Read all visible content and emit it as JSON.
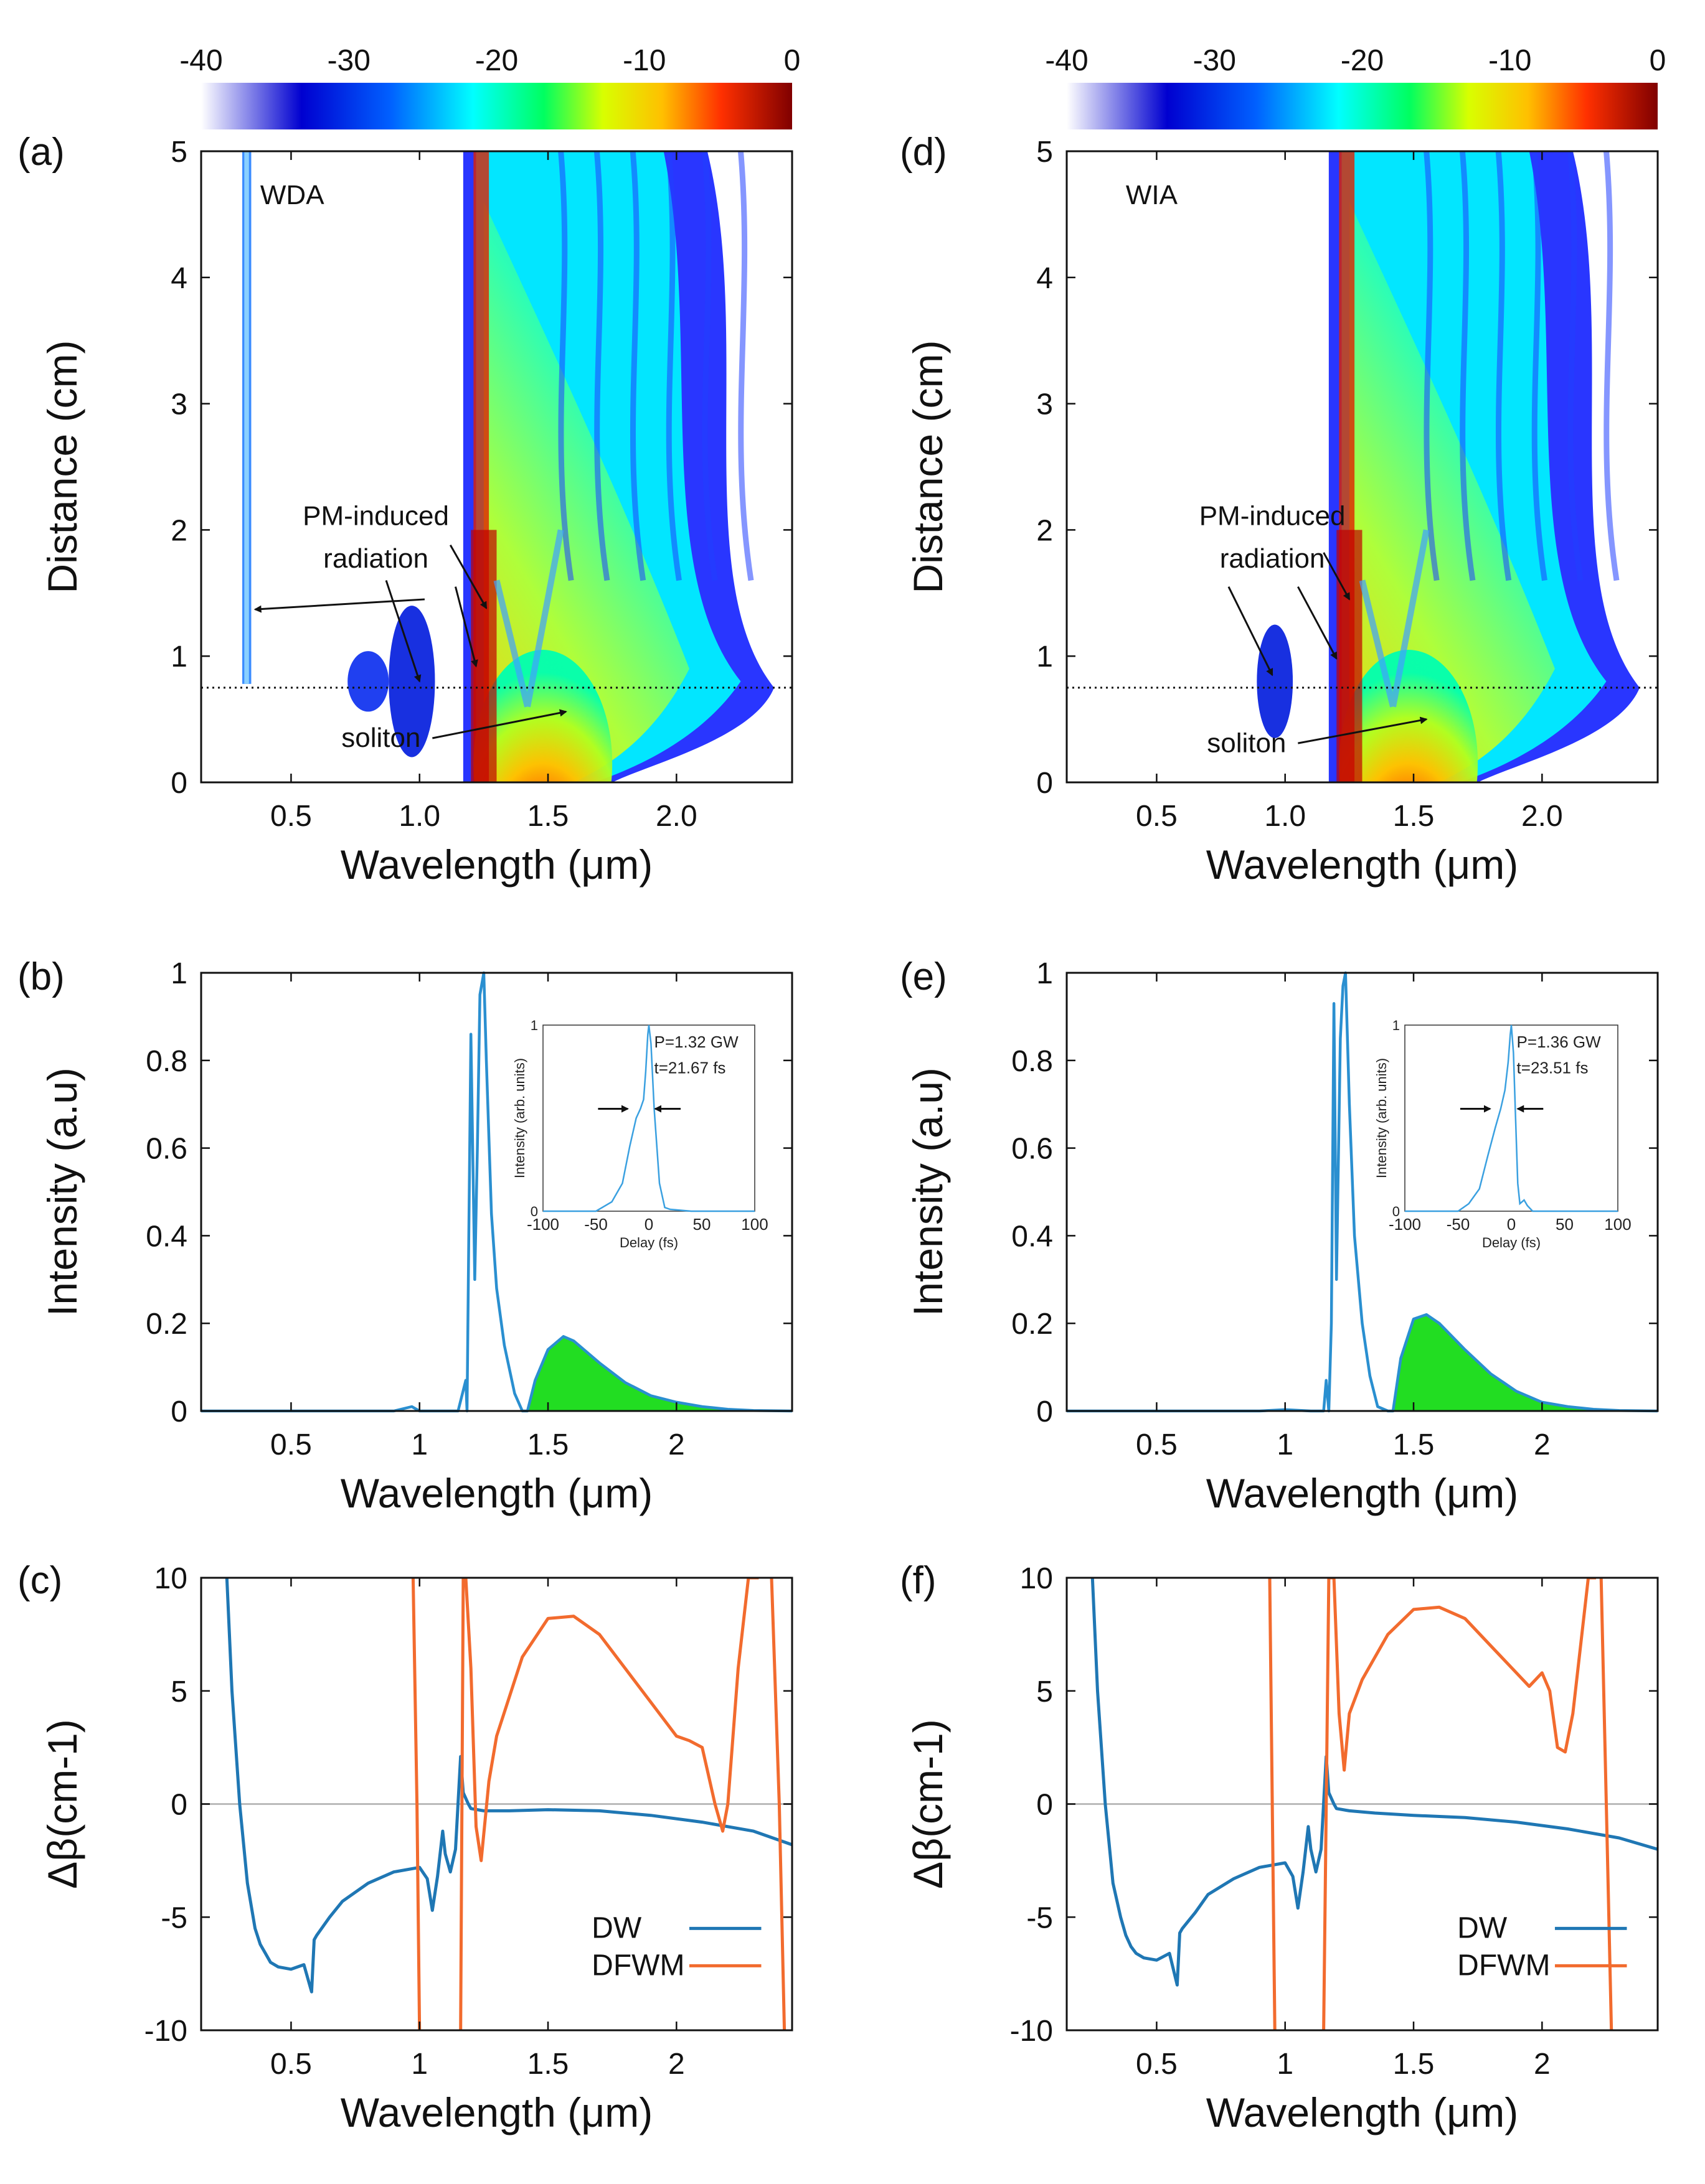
{
  "colorbar": {
    "ticks": [
      "-40",
      "-30",
      "-20",
      "-10",
      "0"
    ],
    "values": [
      -40,
      -30,
      -20,
      -10,
      0
    ],
    "colors": [
      "#ffffff",
      "#0000c8",
      "#0050ff",
      "#00ffff",
      "#00ff60",
      "#d8ff00",
      "#ffc000",
      "#ff4000",
      "#d00000",
      "#800000"
    ]
  },
  "chart_data": [
    {
      "panel": "(a)",
      "type": "heatmap",
      "title": "WDA",
      "xlabel": "Wavelength (μm)",
      "ylabel": "Distance (cm)",
      "xlim": [
        0.15,
        2.45
      ],
      "ylim": [
        0,
        5
      ],
      "xticks": [
        "0.5",
        "1.0",
        "1.5",
        "2.0"
      ],
      "yticks": [
        "0",
        "1",
        "2",
        "3",
        "4",
        "5"
      ],
      "dotted_line_y": 0.75,
      "annotations": {
        "pm": "PM-induced",
        "radiation": "radiation",
        "soliton": "soliton"
      }
    },
    {
      "panel": "(d)",
      "type": "heatmap",
      "title": "WIA",
      "xlabel": "Wavelength (μm)",
      "ylabel": "Distance (cm)",
      "xlim": [
        0.15,
        2.45
      ],
      "ylim": [
        0,
        5
      ],
      "xticks": [
        "0.5",
        "1.0",
        "1.5",
        "2.0"
      ],
      "yticks": [
        "0",
        "1",
        "2",
        "3",
        "4",
        "5"
      ],
      "dotted_line_y": 0.75,
      "annotations": {
        "pm": "PM-induced",
        "radiation": "radiation",
        "soliton": "soliton"
      }
    },
    {
      "panel": "(b)",
      "type": "line",
      "xlabel": "Wavelength (μm)",
      "ylabel": "Intensity (a.u)",
      "xlim": [
        0.15,
        2.45
      ],
      "ylim": [
        0,
        1
      ],
      "xticks": [
        "0.5",
        "1",
        "1.5",
        "2"
      ],
      "yticks": [
        "0",
        "0.2",
        "0.4",
        "0.6",
        "0.8",
        "1"
      ],
      "x": [
        0.15,
        0.9,
        0.97,
        1.0,
        1.05,
        1.15,
        1.18,
        1.185,
        1.19,
        1.2,
        1.215,
        1.225,
        1.235,
        1.25,
        1.26,
        1.28,
        1.3,
        1.33,
        1.37,
        1.4,
        1.42,
        1.45,
        1.5,
        1.56,
        1.6,
        1.7,
        1.8,
        1.9,
        2.0,
        2.1,
        2.2,
        2.3,
        2.45
      ],
      "values": [
        0.0,
        0.0,
        0.01,
        0.0,
        0.0,
        0.0,
        0.07,
        0.0,
        0.3,
        0.86,
        0.3,
        0.6,
        0.95,
        1.0,
        0.8,
        0.45,
        0.28,
        0.15,
        0.04,
        0.0,
        0.0,
        0.07,
        0.14,
        0.17,
        0.16,
        0.11,
        0.065,
        0.035,
        0.02,
        0.01,
        0.004,
        0.001,
        0.0
      ],
      "fill_from": 1.42,
      "inset": {
        "xlabel": "Delay (fs)",
        "ylabel": "Intensity (arb. units)",
        "xticks": [
          "-100",
          "-50",
          "0",
          "50",
          "100"
        ],
        "yticks": [
          "0",
          "1"
        ],
        "power": "P=1.32 GW",
        "width": "t=21.67 fs",
        "x": [
          -100,
          -50,
          -35,
          -25,
          -18,
          -12,
          -8,
          -5,
          -3,
          -1,
          0,
          2,
          5,
          10,
          15,
          20,
          30,
          40,
          60,
          100
        ],
        "values": [
          0.0,
          0.0,
          0.05,
          0.15,
          0.35,
          0.5,
          0.55,
          0.6,
          0.75,
          0.95,
          1.0,
          0.9,
          0.55,
          0.15,
          0.02,
          0.01,
          0.005,
          0.0,
          0.0,
          0.0
        ]
      }
    },
    {
      "panel": "(e)",
      "type": "line",
      "xlabel": "Wavelength (μm)",
      "ylabel": "Intensity (a.u)",
      "xlim": [
        0.15,
        2.45
      ],
      "ylim": [
        0,
        1
      ],
      "xticks": [
        "0.5",
        "1",
        "1.5",
        "2"
      ],
      "yticks": [
        "0",
        "0.2",
        "0.4",
        "0.6",
        "0.8",
        "1"
      ],
      "x": [
        0.15,
        0.9,
        1.0,
        1.1,
        1.15,
        1.16,
        1.17,
        1.18,
        1.19,
        1.2,
        1.215,
        1.225,
        1.235,
        1.25,
        1.27,
        1.3,
        1.33,
        1.36,
        1.4,
        1.42,
        1.45,
        1.5,
        1.55,
        1.6,
        1.7,
        1.8,
        1.9,
        2.0,
        2.1,
        2.2,
        2.3,
        2.45
      ],
      "values": [
        0.0,
        0.0,
        0.003,
        0.0,
        0.0,
        0.07,
        0.0,
        0.2,
        0.93,
        0.3,
        0.85,
        0.97,
        1.0,
        0.7,
        0.4,
        0.2,
        0.08,
        0.01,
        0.0,
        0.0,
        0.12,
        0.21,
        0.22,
        0.2,
        0.14,
        0.085,
        0.045,
        0.02,
        0.01,
        0.004,
        0.001,
        0.0
      ],
      "fill_from": 1.42,
      "inset": {
        "xlabel": "Delay (fs)",
        "ylabel": "Intensity (arb. units)",
        "xticks": [
          "-100",
          "-50",
          "0",
          "50",
          "100"
        ],
        "yticks": [
          "0",
          "1"
        ],
        "power": "P=1.36 GW",
        "width": "t=23.51 fs",
        "x": [
          -100,
          -50,
          -40,
          -30,
          -22,
          -15,
          -10,
          -6,
          -3,
          -1,
          0,
          2,
          4,
          6,
          8,
          12,
          15,
          20,
          30,
          100
        ],
        "values": [
          0.0,
          0.0,
          0.04,
          0.12,
          0.3,
          0.45,
          0.55,
          0.65,
          0.8,
          0.95,
          1.0,
          0.85,
          0.5,
          0.15,
          0.04,
          0.06,
          0.03,
          0.0,
          0.0,
          0.0
        ]
      }
    },
    {
      "panel": "(c)",
      "type": "line",
      "xlabel": "Wavelength (μm)",
      "ylabel": "Δβ(cm-1)",
      "xlim": [
        0.15,
        2.45
      ],
      "ylim": [
        -10,
        10
      ],
      "xticks": [
        "0.5",
        "1",
        "1.5",
        "2"
      ],
      "yticks": [
        "-10",
        "-5",
        "0",
        "5",
        "10"
      ],
      "series": [
        {
          "name": "DW",
          "color": "#1f77b4",
          "x": [
            0.25,
            0.27,
            0.3,
            0.33,
            0.36,
            0.38,
            0.4,
            0.42,
            0.45,
            0.5,
            0.55,
            0.58,
            0.59,
            0.6,
            0.65,
            0.7,
            0.8,
            0.9,
            1.0,
            1.03,
            1.05,
            1.07,
            1.09,
            1.1,
            1.12,
            1.14,
            1.16,
            1.17,
            1.19,
            1.2,
            1.25,
            1.35,
            1.5,
            1.7,
            1.9,
            2.1,
            2.3,
            2.45
          ],
          "values": [
            10.0,
            5.0,
            0.0,
            -3.5,
            -5.5,
            -6.2,
            -6.6,
            -7.0,
            -7.2,
            -7.3,
            -7.1,
            -8.3,
            -6.0,
            -5.8,
            -5.0,
            -4.3,
            -3.5,
            -3.0,
            -2.8,
            -3.3,
            -4.7,
            -3.2,
            -1.2,
            -2.2,
            -3.0,
            -2.0,
            2.1,
            0.5,
            0.0,
            -0.2,
            -0.3,
            -0.3,
            -0.25,
            -0.3,
            -0.5,
            -0.8,
            -1.2,
            -1.8
          ]
        },
        {
          "name": "DFWM",
          "color": "#f26b2e",
          "segments": [
            {
              "x": [
                0.975,
                0.99,
                1.0
              ],
              "values": [
                10.0,
                0.0,
                -10.0
              ]
            },
            {
              "x": [
                1.16,
                1.17,
                1.18,
                1.2,
                1.22,
                1.24,
                1.27,
                1.3,
                1.4,
                1.5,
                1.6,
                1.7,
                1.8,
                1.9,
                2.0,
                2.05,
                2.1,
                2.15,
                2.18,
                2.2,
                2.24,
                2.28,
                2.32
              ],
              "values": [
                -10.0,
                10.0,
                10.0,
                6.0,
                -1.0,
                -2.5,
                1.0,
                3.0,
                6.5,
                8.2,
                8.3,
                7.5,
                6.0,
                4.5,
                3.0,
                2.8,
                2.5,
                0.0,
                -1.2,
                0.0,
                6.0,
                10.0,
                10.0
              ]
            },
            {
              "x": [
                2.37,
                2.4,
                2.42
              ],
              "values": [
                10.0,
                0.0,
                -10.0
              ]
            }
          ]
        }
      ],
      "legend": [
        "DW",
        "DFWM"
      ]
    },
    {
      "panel": "(f)",
      "type": "line",
      "xlabel": "Wavelength (μm)",
      "ylabel": "Δβ(cm-1)",
      "xlim": [
        0.15,
        2.45
      ],
      "ylim": [
        -10,
        10
      ],
      "xticks": [
        "0.5",
        "1",
        "1.5",
        "2"
      ],
      "yticks": [
        "-10",
        "-5",
        "0",
        "5",
        "10"
      ],
      "series": [
        {
          "name": "DW",
          "color": "#1f77b4",
          "x": [
            0.25,
            0.27,
            0.3,
            0.33,
            0.36,
            0.38,
            0.4,
            0.42,
            0.45,
            0.5,
            0.55,
            0.58,
            0.59,
            0.6,
            0.65,
            0.7,
            0.8,
            0.9,
            1.0,
            1.03,
            1.05,
            1.07,
            1.09,
            1.1,
            1.12,
            1.14,
            1.16,
            1.17,
            1.19,
            1.2,
            1.25,
            1.35,
            1.5,
            1.7,
            1.9,
            2.1,
            2.3,
            2.45
          ],
          "values": [
            10.0,
            5.0,
            0.0,
            -3.5,
            -5.0,
            -5.8,
            -6.3,
            -6.6,
            -6.8,
            -6.9,
            -6.6,
            -8.0,
            -5.7,
            -5.5,
            -4.8,
            -4.0,
            -3.3,
            -2.8,
            -2.6,
            -3.2,
            -4.6,
            -3.0,
            -1.0,
            -2.0,
            -3.0,
            -2.0,
            2.1,
            0.5,
            0.0,
            -0.2,
            -0.3,
            -0.4,
            -0.5,
            -0.6,
            -0.8,
            -1.1,
            -1.5,
            -2.0
          ]
        },
        {
          "name": "DFWM",
          "color": "#f26b2e",
          "segments": [
            {
              "x": [
                0.94,
                0.95,
                0.96
              ],
              "values": [
                10.0,
                0.0,
                -10.0
              ]
            },
            {
              "x": [
                1.15,
                1.17,
                1.19,
                1.21,
                1.23,
                1.25,
                1.3,
                1.4,
                1.5,
                1.6,
                1.7,
                1.8,
                1.9,
                1.95,
                2.0,
                2.03,
                2.06,
                2.09,
                2.12,
                2.15,
                2.18,
                2.2,
                2.21
              ],
              "values": [
                -10.0,
                10.0,
                10.0,
                4.0,
                1.5,
                4.0,
                5.5,
                7.5,
                8.6,
                8.7,
                8.2,
                7.0,
                5.8,
                5.2,
                5.8,
                5.0,
                2.5,
                2.3,
                4.0,
                7.0,
                10.0,
                10.0,
                10.0
              ]
            },
            {
              "x": [
                2.23,
                2.25,
                2.27
              ],
              "values": [
                10.0,
                0.0,
                -10.0
              ]
            }
          ]
        }
      ],
      "legend": [
        "DW",
        "DFWM"
      ]
    }
  ]
}
